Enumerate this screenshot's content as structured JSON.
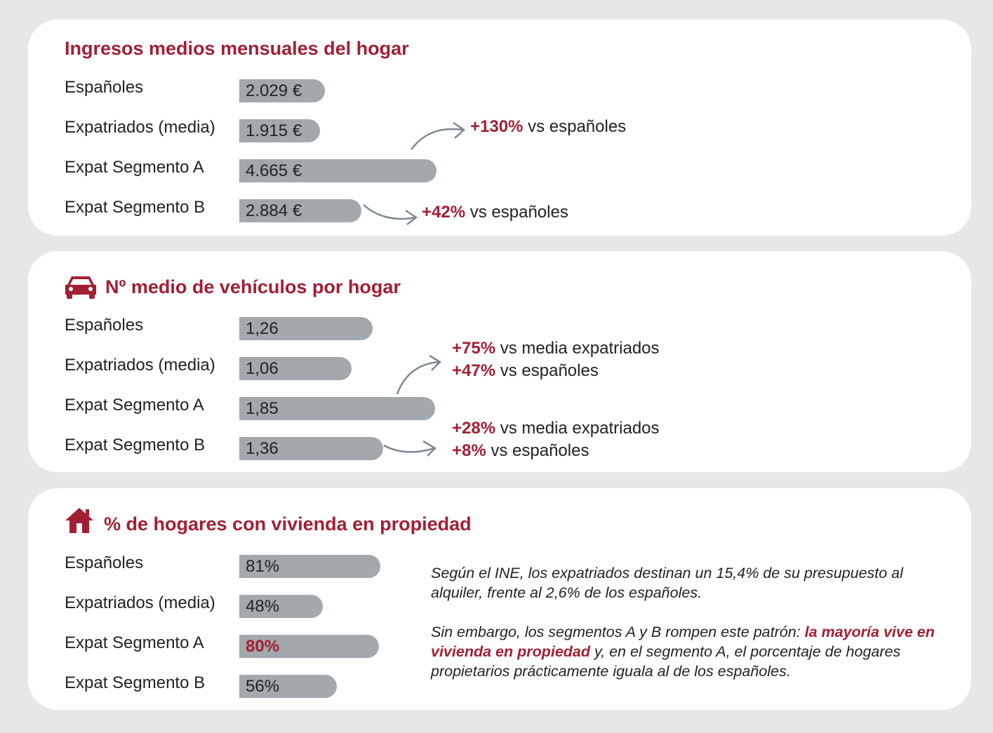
{
  "colors": {
    "accent": "#a31f34",
    "bar": "#a2a8ab",
    "card": "#ffffff",
    "background": "#e7e7e7",
    "arrow": "#7d8990"
  },
  "chart_data": [
    {
      "type": "bar",
      "orientation": "horizontal",
      "title": "Ingresos medios mensuales del hogar",
      "categories": [
        "Españoles",
        "Expatriados (media)",
        "Expat Segmento A",
        "Expat Segmento B"
      ],
      "values": [
        2029,
        1915,
        4665,
        2884
      ],
      "labels": [
        "2.029 €",
        "1.915 €",
        "4.665 €",
        "2.884 €"
      ],
      "highlight": [
        false,
        false,
        false,
        false
      ],
      "xlim": [
        0,
        4665
      ],
      "annotations": [
        {
          "target": "Expat Segmento A",
          "value": "+130%",
          "text": " vs españoles"
        },
        {
          "target": "Expat Segmento B",
          "value": "+42%",
          "text": " vs españoles"
        }
      ]
    },
    {
      "type": "bar",
      "orientation": "horizontal",
      "title": "Nº medio de vehículos por hogar",
      "icon": "car-icon",
      "categories": [
        "Españoles",
        "Expatriados (media)",
        "Expat Segmento A",
        "Expat Segmento B"
      ],
      "values": [
        1.26,
        1.06,
        1.85,
        1.36
      ],
      "labels": [
        "1,26",
        "1,06",
        "1,85",
        "1,36"
      ],
      "highlight": [
        false,
        false,
        false,
        false
      ],
      "xlim": [
        0,
        1.85
      ],
      "annotations": [
        {
          "target": "Expat Segmento A",
          "lines": [
            {
              "value": "+75%",
              "text": " vs media expatriados"
            },
            {
              "value": "+47%",
              "text": " vs españoles"
            }
          ]
        },
        {
          "target": "Expat Segmento B",
          "lines": [
            {
              "value": "+28%",
              "text": " vs media expatriados"
            },
            {
              "value": "+8%",
              "text": " vs españoles"
            }
          ]
        }
      ]
    },
    {
      "type": "bar",
      "orientation": "horizontal",
      "title": "% de hogares con vivienda en propiedad",
      "icon": "house-icon",
      "categories": [
        "Españoles",
        "Expatriados (media)",
        "Expat Segmento A",
        "Expat Segmento B"
      ],
      "values": [
        81,
        48,
        80,
        56
      ],
      "labels": [
        "81%",
        "48%",
        "80%",
        "56%"
      ],
      "highlight": [
        false,
        false,
        true,
        false
      ],
      "xlim": [
        0,
        81
      ]
    }
  ],
  "commentary": {
    "p1": "Según el INE, los expatriados destinan un 15,4% de su presupuesto al alquiler, frente al 2,6% de los españoles.",
    "p2_a": "Sin embargo, los segmentos A y B rompen este patrón: ",
    "p2_b": "la mayoría vive en vivienda en propiedad",
    "p2_c": " y, en el segmento A, el porcentaje de hogares propietarios prácticamente iguala al de los españoles."
  }
}
